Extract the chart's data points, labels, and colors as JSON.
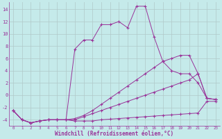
{
  "xlabel": "Windchill (Refroidissement éolien,°C)",
  "background_color": "#c5eaea",
  "line_color": "#993399",
  "grid_color": "#b0c8c8",
  "xlim": [
    -0.5,
    23.5
  ],
  "ylim": [
    -5.0,
    15.2
  ],
  "yticks": [
    -4,
    -2,
    0,
    2,
    4,
    6,
    8,
    10,
    12,
    14
  ],
  "xticks": [
    0,
    1,
    2,
    3,
    4,
    5,
    6,
    7,
    8,
    9,
    10,
    11,
    12,
    13,
    14,
    15,
    16,
    17,
    18,
    19,
    20,
    21,
    22,
    23
  ],
  "series": [
    {
      "x": [
        0,
        1,
        2,
        3,
        4,
        5,
        6,
        7,
        8,
        9,
        10,
        11,
        12,
        13,
        14,
        15,
        16,
        17,
        18,
        19,
        20,
        21,
        22,
        23
      ],
      "y": [
        -2.5,
        -4.0,
        -4.5,
        -4.2,
        -4.0,
        -4.0,
        -4.0,
        -4.2,
        -4.2,
        -4.2,
        -4.0,
        -3.9,
        -3.8,
        -3.7,
        -3.6,
        -3.5,
        -3.4,
        -3.3,
        -3.2,
        -3.1,
        -3.0,
        -2.9,
        -1.0,
        -1.0
      ]
    },
    {
      "x": [
        0,
        1,
        2,
        3,
        4,
        5,
        6,
        7,
        8,
        9,
        10,
        11,
        12,
        13,
        14,
        15,
        16,
        17,
        18,
        19,
        20,
        21,
        22,
        23
      ],
      "y": [
        -2.5,
        -4.0,
        -4.5,
        -4.2,
        -4.0,
        -4.0,
        -4.0,
        -4.0,
        -3.5,
        -3.0,
        -2.5,
        -2.0,
        -1.5,
        -1.0,
        -0.5,
        0.0,
        0.5,
        1.0,
        1.5,
        2.0,
        2.5,
        3.5,
        -0.5,
        -0.7
      ]
    },
    {
      "x": [
        0,
        1,
        2,
        3,
        4,
        5,
        6,
        7,
        8,
        9,
        10,
        11,
        12,
        13,
        14,
        15,
        16,
        17,
        18,
        19,
        20,
        21,
        22,
        23
      ],
      "y": [
        -2.5,
        -4.0,
        -4.5,
        -4.2,
        -4.0,
        -4.0,
        -4.0,
        -3.8,
        -3.3,
        -2.5,
        -1.5,
        -0.5,
        0.5,
        1.5,
        2.5,
        3.5,
        4.5,
        5.5,
        6.0,
        6.5,
        6.5,
        3.5,
        -0.5,
        -0.7
      ]
    },
    {
      "x": [
        0,
        1,
        2,
        3,
        4,
        5,
        6,
        7,
        8,
        9,
        10,
        11,
        12,
        13,
        14,
        15,
        16,
        17,
        18,
        19,
        20,
        21,
        22,
        23
      ],
      "y": [
        -2.5,
        -4.0,
        -4.5,
        -4.2,
        -4.0,
        -4.0,
        -4.0,
        7.5,
        9.0,
        9.0,
        11.5,
        11.5,
        12.0,
        11.0,
        14.5,
        14.5,
        9.5,
        5.5,
        4.0,
        3.5,
        3.5,
        2.0,
        -0.5,
        -0.7
      ]
    }
  ]
}
